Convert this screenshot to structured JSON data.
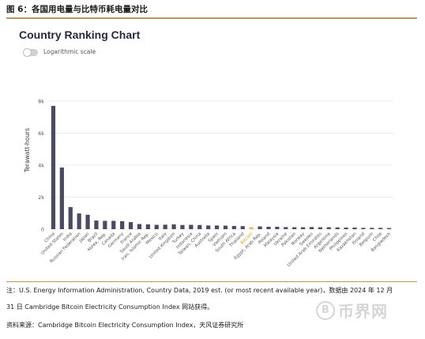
{
  "figure": {
    "label": "图 6：各国用电量与比特币耗电量对比"
  },
  "chart_header": {
    "title": "Country Ranking Chart",
    "toggle_label": "Logarithmic scale",
    "toggle_on": false
  },
  "chart_data": {
    "type": "bar",
    "title": "Country Ranking Chart",
    "ylabel": "Terawatt-hours",
    "xlabel": "",
    "ylim": [
      0,
      8000
    ],
    "y_ticks": [
      "0",
      "2k",
      "4k",
      "6k",
      "8k"
    ],
    "y_tick_values": [
      0,
      2000,
      4000,
      6000,
      8000
    ],
    "grid": true,
    "highlight_category": "Bitcoin",
    "colors": {
      "bar": "#4a4a63",
      "highlight": "#f2b43a",
      "grid": "#e6e6ea"
    },
    "categories": [
      "China",
      "United States",
      "India",
      "Russian Federation",
      "Japan",
      "Brazil",
      "Korea, Rep.",
      "Canada",
      "Germany",
      "France",
      "Saudi Arabia",
      "Iran, Islamic Rep.",
      "Mexico",
      "Italy",
      "United Kingdom",
      "Turkey",
      "Indonesia",
      "Taiwan, China",
      "Australia",
      "Spain",
      "Vietnam",
      "South Africa",
      "Thailand",
      "Bitcoin",
      "Egypt, Arab Rep.",
      "Poland",
      "Malaysia",
      "Ukraine",
      "Pakistan",
      "Norway",
      "Sweden",
      "United Arab Emirates",
      "Argentina",
      "Netherlands",
      "Philippines",
      "Kazakhstan",
      "Finland",
      "Belgium",
      "Chile",
      "Bangladesh"
    ],
    "values": [
      7700,
      3850,
      1380,
      980,
      900,
      540,
      520,
      520,
      500,
      440,
      320,
      300,
      270,
      280,
      300,
      260,
      270,
      260,
      230,
      230,
      220,
      200,
      190,
      120,
      170,
      150,
      150,
      130,
      120,
      120,
      130,
      120,
      120,
      110,
      100,
      100,
      80,
      80,
      80,
      70
    ]
  },
  "notes": {
    "line1": "注：U.S. Energy Information Administration, Country Data, 2019 est. (or most recent available year)，数据由 2024 年 12 月",
    "line2": "31 日 Cambridge Bitcoin Electricity Consumption Index 网站获得。",
    "source": "资料来源：Cambridge Bitcoin Electricity Consumption Index，天风证券研究所"
  },
  "watermark": {
    "glyph": "B",
    "text": "币界网",
    "icon": "bitcoin-coin-icon"
  }
}
